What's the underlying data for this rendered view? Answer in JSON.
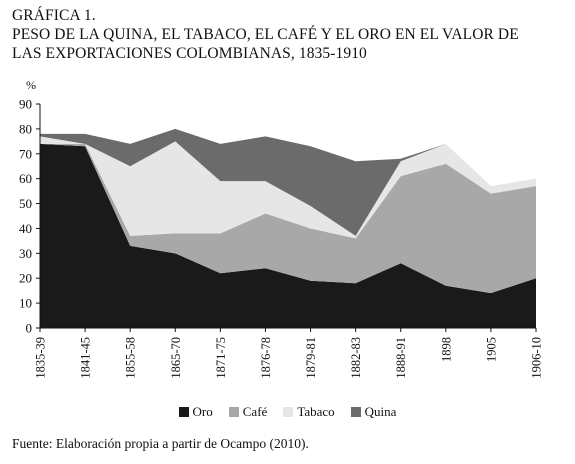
{
  "header": {
    "label": "GRÁFICA 1.",
    "title_line1": "PESO DE LA QUINA, EL TABACO, EL CAFÉ Y EL ORO EN EL VALOR DE",
    "title_line2": "LAS EXPORTACIONES COLOMBIANAS, 1835-1910"
  },
  "source": "Fuente: Elaboración propia a partir de Ocampo (2010).",
  "chart_data": {
    "type": "area",
    "stacked": true,
    "ylabel": "%",
    "ylim": [
      0,
      90
    ],
    "yticks": [
      "0",
      "10",
      "20",
      "30",
      "40",
      "50",
      "60",
      "70",
      "80",
      "90"
    ],
    "categories": [
      "1835-39",
      "1841-45",
      "1855-58",
      "1865-70",
      "1871-75",
      "1876-78",
      "1879-81",
      "1882-83",
      "1888-91",
      "1898",
      "1905",
      "1906-10"
    ],
    "legend_position": "bottom",
    "grid": false,
    "series": [
      {
        "name": "Oro",
        "color": "#1a1a1a",
        "values": [
          74,
          73,
          33,
          30,
          22,
          24,
          19,
          18,
          26,
          17,
          14,
          20
        ]
      },
      {
        "name": "Café",
        "color": "#a8a8a8",
        "values": [
          0,
          1,
          4,
          8,
          16,
          22,
          21,
          18,
          35,
          49,
          40,
          37
        ]
      },
      {
        "name": "Tabaco",
        "color": "#e6e6e6",
        "values": [
          3,
          0,
          28,
          37,
          21,
          13,
          9,
          1,
          6,
          8,
          3,
          3
        ]
      },
      {
        "name": "Quina",
        "color": "#6b6b6b",
        "values": [
          1,
          4,
          9,
          5,
          15,
          18,
          24,
          30,
          1,
          0,
          0,
          0
        ]
      }
    ]
  }
}
